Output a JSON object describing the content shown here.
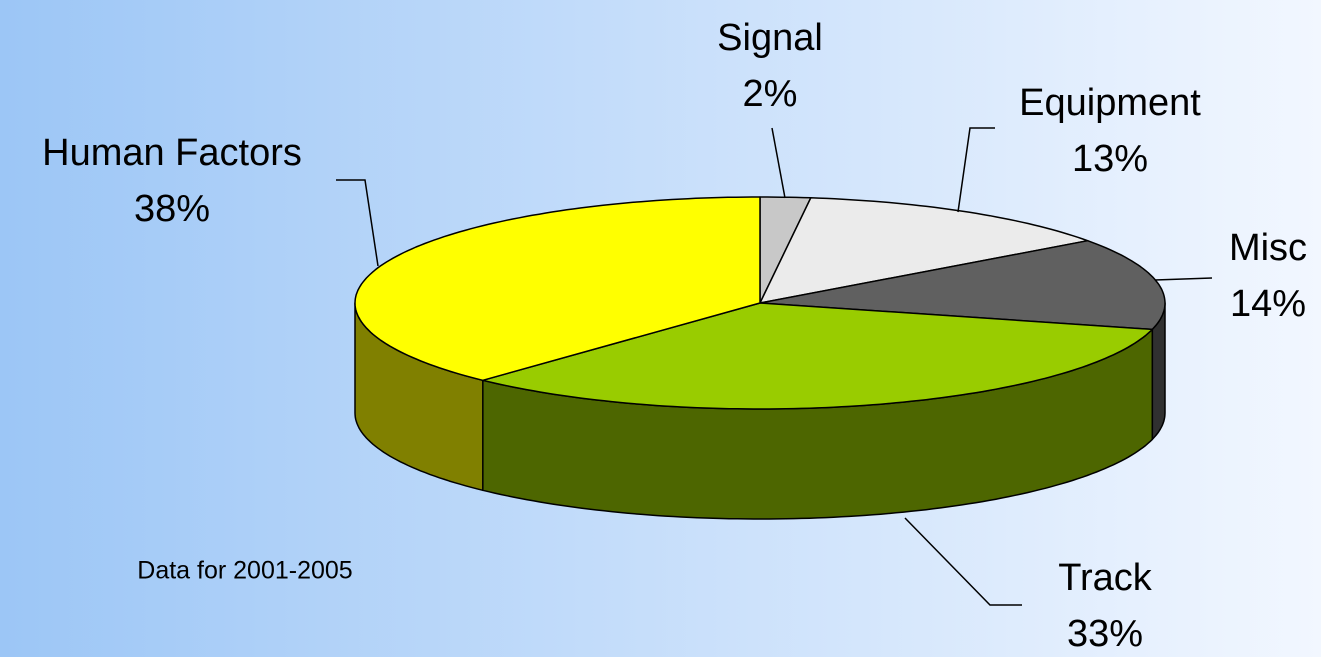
{
  "chart_data": {
    "type": "pie",
    "categories": [
      "Signal",
      "Equipment",
      "Misc",
      "Track",
      "Human Factors"
    ],
    "values": [
      2,
      13,
      14,
      33,
      38
    ],
    "value_labels": [
      "2%",
      "13%",
      "14%",
      "33%",
      "38%"
    ],
    "colors": [
      "#c8c8c8",
      "#ebebeb",
      "#606060",
      "#99cc00",
      "#ffff00"
    ],
    "annotation": "Data for 2001-2005"
  }
}
